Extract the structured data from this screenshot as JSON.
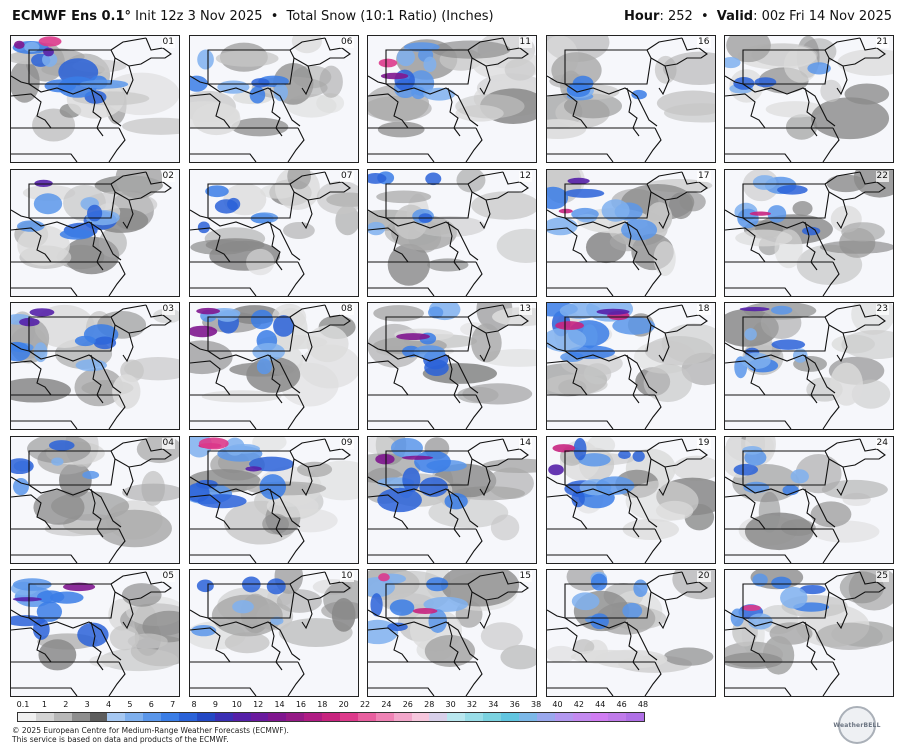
{
  "header": {
    "model": "ECMWF Ens 0.1°",
    "init": "Init 12z 3 Nov 2025",
    "bullet": "•",
    "product": "Total Snow (10:1 Ratio) (Inches)",
    "hour_label": "Hour",
    "hour_value": ": 252",
    "valid_label": "Valid",
    "valid_value": ": 00z Fri 14 Nov 2025"
  },
  "members": [
    "01",
    "06",
    "11",
    "16",
    "21",
    "02",
    "07",
    "12",
    "17",
    "22",
    "03",
    "08",
    "13",
    "18",
    "23",
    "04",
    "09",
    "14",
    "19",
    "24",
    "05",
    "10",
    "15",
    "20",
    "25"
  ],
  "snow_intensity": [
    0.9,
    0.5,
    0.75,
    0.35,
    0.3,
    0.6,
    0.35,
    0.35,
    0.65,
    0.55,
    0.65,
    0.7,
    0.55,
    0.85,
    0.6,
    0.4,
    0.9,
    0.75,
    0.7,
    0.4,
    0.7,
    0.4,
    0.75,
    0.45,
    0.6
  ],
  "legend": {
    "ticks": [
      "0.1",
      "1",
      "2",
      "3",
      "4",
      "5",
      "6",
      "7",
      "8",
      "9",
      "10",
      "12",
      "14",
      "16",
      "18",
      "20",
      "22",
      "24",
      "26",
      "28",
      "30",
      "32",
      "34",
      "36",
      "38",
      "40",
      "42",
      "44",
      "46",
      "48"
    ],
    "colors": [
      "#f0f0f0",
      "#d4d4d4",
      "#b8b8b8",
      "#8e8e8e",
      "#5e5e5e",
      "#a6c8f2",
      "#7fb0ee",
      "#5a96ea",
      "#3a7de6",
      "#2a62d8",
      "#2348c4",
      "#3a2fb4",
      "#5520a8",
      "#6a1a9e",
      "#80168f",
      "#951a86",
      "#b01c84",
      "#c8247f",
      "#dd3a8b",
      "#e85f9f",
      "#ef83b5",
      "#f2a7cb",
      "#f6c7dd",
      "#d8d0ea",
      "#b9e7ef",
      "#99dde8",
      "#7bd2e0",
      "#61c5e0",
      "#7cb8e8",
      "#9aa8ee",
      "#b398f0",
      "#c48af0",
      "#d07df2",
      "#c07bea",
      "#b070e6"
    ]
  },
  "credits": [
    "© 2025 European Centre for Medium-Range Weather Forecasts (ECMWF).",
    "This service is based on data and products of the ECMWF."
  ],
  "logo_text": "WeatherBELL"
}
